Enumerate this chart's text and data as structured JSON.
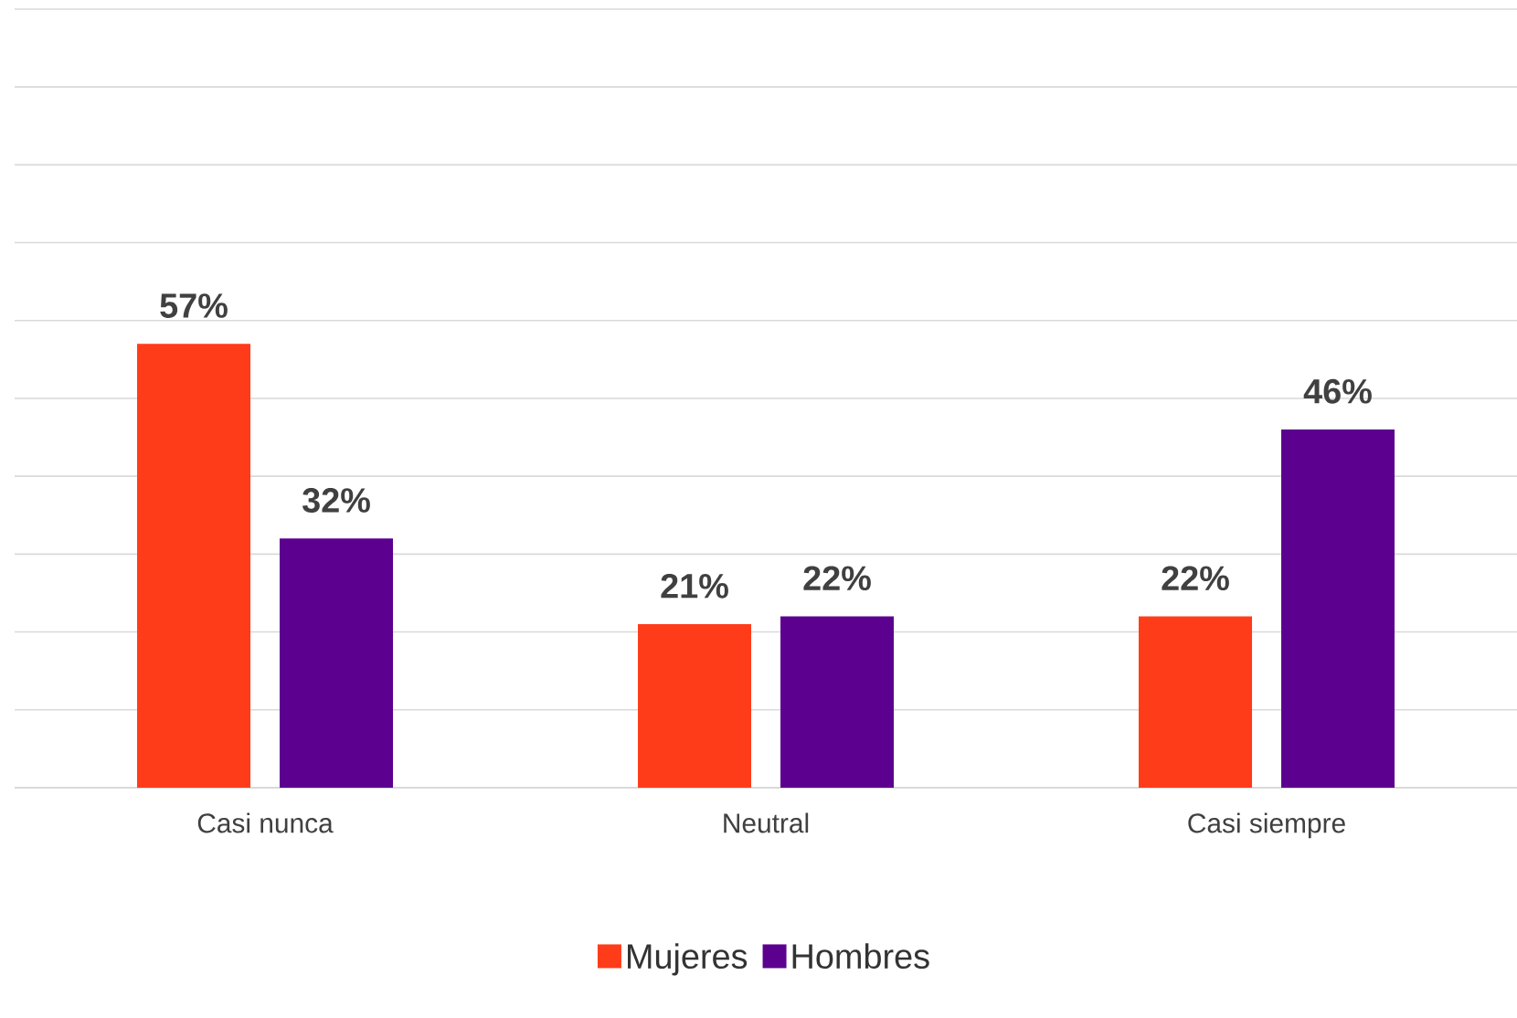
{
  "chart_data": {
    "type": "bar",
    "categories": [
      "Casi nunca",
      "Neutral",
      "Casi siempre"
    ],
    "series": [
      {
        "name": "Mujeres",
        "color": "#ff3c1a",
        "values": [
          57,
          21,
          22
        ],
        "value_labels": [
          "57%",
          "21%",
          "22%"
        ]
      },
      {
        "name": "Hombres",
        "color": "#5c008f",
        "values": [
          32,
          22,
          46
        ],
        "value_labels": [
          "32%",
          "22%",
          "46%"
        ]
      }
    ],
    "ylim": [
      0,
      100
    ],
    "yticks": [
      {
        "value": 0,
        "label": null
      },
      {
        "value": 10,
        "label": null
      },
      {
        "value": 20,
        "label": null
      },
      {
        "value": 30,
        "label": null
      },
      {
        "value": 40,
        "label": null
      },
      {
        "value": 50,
        "label": null
      },
      {
        "value": 60,
        "label": null
      },
      {
        "value": 70,
        "label": null
      },
      {
        "value": 80,
        "label": null
      },
      {
        "value": 90,
        "label": null
      },
      {
        "value": 100,
        "label": null
      }
    ],
    "grid": "y",
    "legend": "bottom",
    "tick_labels": "x"
  }
}
